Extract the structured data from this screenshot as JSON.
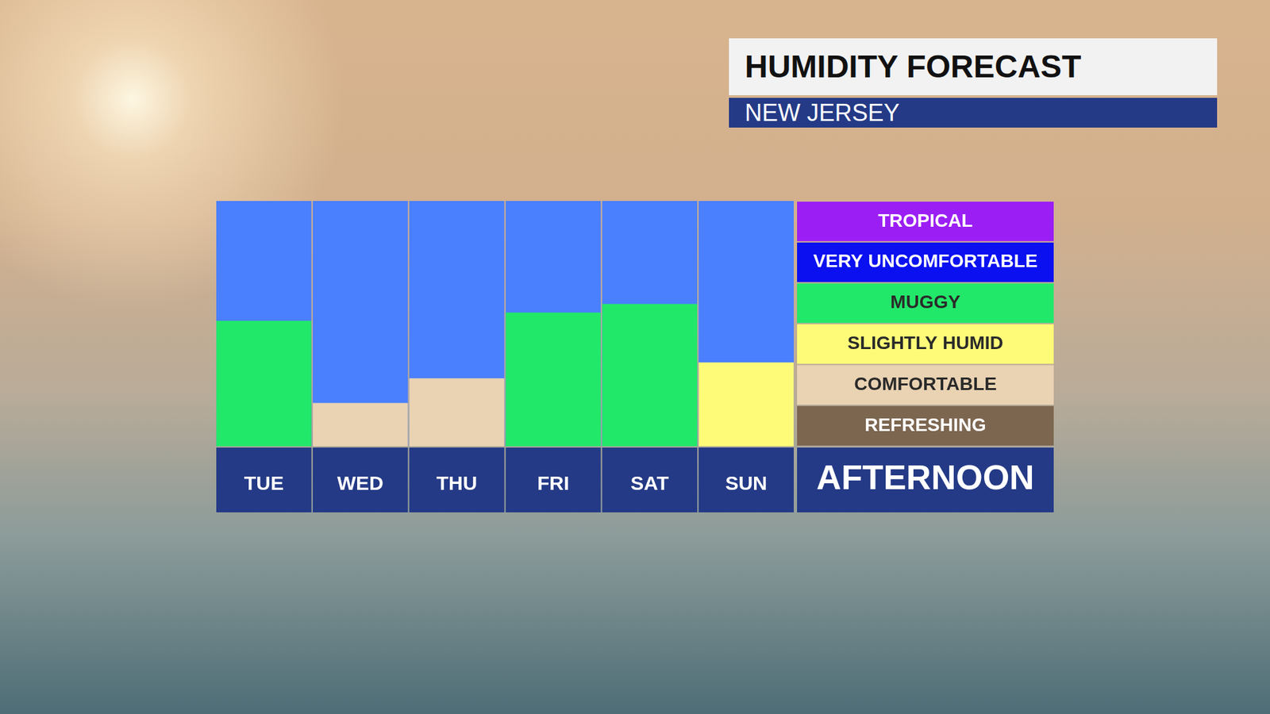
{
  "chart_data": {
    "type": "bar",
    "title": "HUMIDITY FORECAST",
    "subtitle": "NEW JERSEY",
    "x_label": "AFTERNOON",
    "categories": [
      "TUE",
      "WED",
      "THU",
      "FRI",
      "SAT",
      "SUN"
    ],
    "values": [
      3.07,
      1.06,
      1.66,
      3.27,
      3.48,
      2.05
    ],
    "colors": [
      "#22e86a",
      "#ead3b3",
      "#ead3b3",
      "#22e86a",
      "#22e86a",
      "#fdfb78"
    ],
    "ylim": [
      0,
      6
    ],
    "yticks": [
      {
        "value": 0.5,
        "label": "REFRESHING",
        "color": "#7d6650"
      },
      {
        "value": 1.5,
        "label": "COMFORTABLE",
        "color": "#ead3b3"
      },
      {
        "value": 2.5,
        "label": "SLIGHTLY HUMID",
        "color": "#fdfb78"
      },
      {
        "value": 3.5,
        "label": "MUGGY",
        "color": "#22e86a"
      },
      {
        "value": 4.5,
        "label": "VERY UNCOMFORTABLE",
        "color": "#0a10f0"
      },
      {
        "value": 5.5,
        "label": "TROPICAL",
        "color": "#9b1ff5"
      }
    ],
    "grid": false
  }
}
